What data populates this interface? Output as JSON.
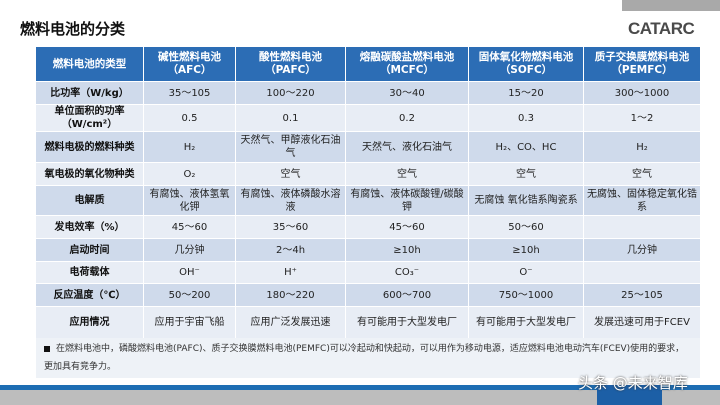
{
  "title": "燃料电池的分类",
  "logo": "CATARC",
  "headers": [
    "燃料电池的类型",
    "碱性燃料电池（AFC）",
    "酸性燃料电池（PAFC）",
    "熔融碳酸盐燃料电池（MCFC）",
    "固体氧化物燃料电池（SOFC）",
    "质子交换膜燃料电池（PEMFC）"
  ],
  "rows": [
    [
      "比功率（W/kg）",
      "35～105",
      "100～220",
      "30～40",
      "15～20",
      "300～1000"
    ],
    [
      "单位面积的功率（W/cm²）",
      "0.5",
      "0.1",
      "0.2",
      "0.3",
      "1～2"
    ],
    [
      "燃料电极的燃料种类",
      "H₂",
      "天然气、甲醇液化石油气",
      "天然气、液化石油气",
      "H₂、CO、HC",
      "H₂"
    ],
    [
      "氧电极的氧化物种类",
      "O₂",
      "空气",
      "空气",
      "空气",
      "空气"
    ],
    [
      "电解质",
      "有腐蚀、液体氢氧化钾",
      "有腐蚀、液体磷酸水溶液",
      "有腐蚀、液体碳酸锂/碳酸钾",
      "无腐蚀 氧化锆系陶瓷系",
      "无腐蚀、固体稳定氧化锆系"
    ],
    [
      "发电效率（%）",
      "45～60",
      "35～60",
      "45～60",
      "50～60",
      ""
    ],
    [
      "启动时间",
      "几分钟",
      "2～4h",
      "≥10h",
      "≥10h",
      "几分钟"
    ],
    [
      "电荷载体",
      "OH⁻",
      "H⁺",
      "CO₃⁻",
      "O⁻",
      ""
    ],
    [
      "反应温度（℃）",
      "50～200",
      "180～220",
      "600～700",
      "750～1000",
      "25～105"
    ],
    [
      "应用情况",
      "应用于宇宙飞船",
      "应用广泛发展迅速",
      "有可能用于大型发电厂",
      "有可能用于大型发电厂",
      "发展迅速可用于FCEV"
    ]
  ],
  "note": "在燃料电池中，磷酸燃料电池(PAFC)、质子交换膜燃料电池(PEMFC)可以冷起动和快起动，可以用作为移动电源，适应燃料电池电动汽车(FCEV)使用的要求，更加具有竞争力。",
  "watermark": "头条 @未来智库",
  "colors": {
    "header": "#2c6db5",
    "row_dark": "#cfdaeb",
    "row_light": "#e8edf5",
    "band": "#1d6db3"
  }
}
